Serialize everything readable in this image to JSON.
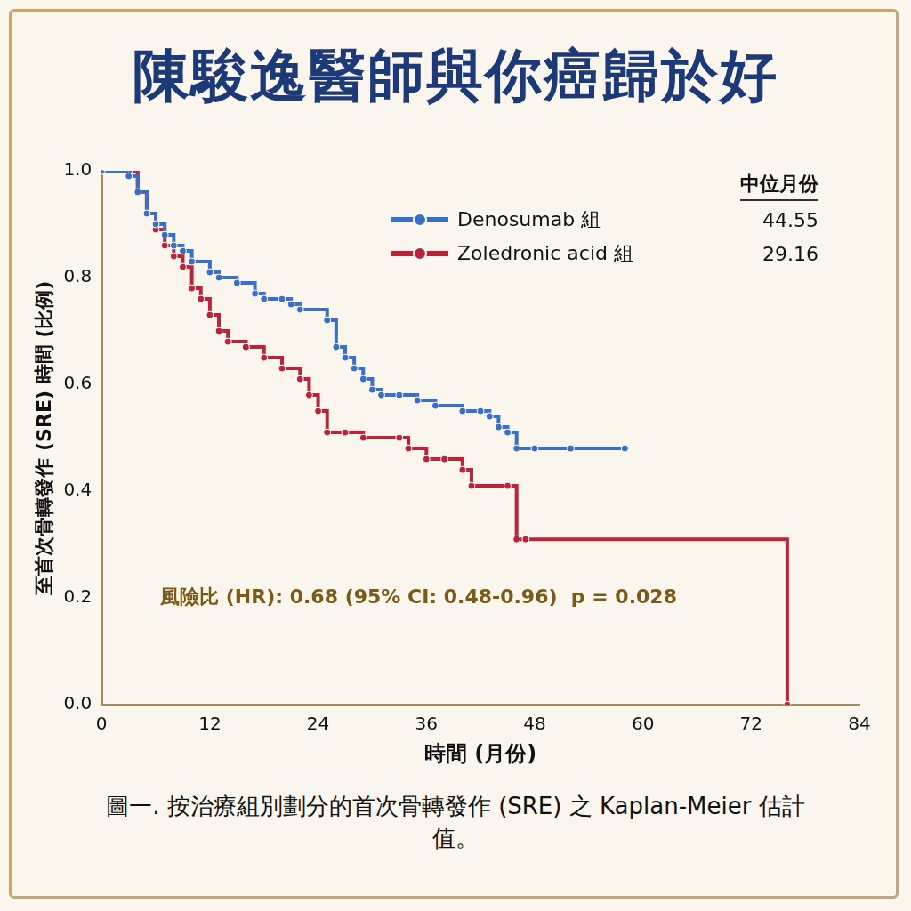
{
  "chart_data": {
    "type": "line",
    "title": "陳駿逸醫師與你癌歸於好",
    "x_label": "時間 (月份)",
    "y_label": "至首次骨轉發作 (SRE) 時間 (比例)",
    "caption": "圖一. 按治療組別劃分的首次骨轉發作 (SRE) 之 Kaplan-Meier 估計值。",
    "annotation": "風險比 (HR): 0.68 (95% CI: 0.48-0.96)  p = 0.028",
    "median_header": "中位月份",
    "xlim": [
      0,
      84
    ],
    "xticks": [
      0,
      12,
      24,
      36,
      48,
      60,
      72,
      84
    ],
    "ylim": [
      0,
      1
    ],
    "yticks": [
      {
        "value": 0,
        "label": "0.0"
      },
      0.2,
      0.4,
      0.6,
      0.8,
      {
        "value": 1,
        "label": "1.0"
      }
    ],
    "grid": false,
    "legend": "upper right",
    "series": [
      {
        "name": "Denosumab 組",
        "color": "#3a6fc4",
        "median": 44.55,
        "marker": "circle",
        "line_style": "steps",
        "x": [
          0,
          3,
          4,
          5,
          6,
          7,
          8,
          9,
          10,
          12,
          13,
          15,
          17,
          18,
          20,
          21,
          22,
          25,
          26,
          27,
          28,
          29,
          30,
          31,
          33,
          35,
          37,
          40,
          42,
          43,
          44,
          45,
          46,
          48,
          52,
          58
        ],
        "values": [
          1.0,
          0.99,
          0.96,
          0.92,
          0.9,
          0.88,
          0.86,
          0.85,
          0.83,
          0.81,
          0.8,
          0.79,
          0.77,
          0.76,
          0.76,
          0.75,
          0.74,
          0.72,
          0.67,
          0.65,
          0.63,
          0.61,
          0.59,
          0.58,
          0.58,
          0.57,
          0.56,
          0.55,
          0.55,
          0.54,
          0.52,
          0.51,
          0.48,
          0.48,
          0.48,
          0.48
        ]
      },
      {
        "name": "Zoledronic acid 組",
        "color": "#b8243a",
        "median": 29.16,
        "marker": "circle",
        "line_style": "steps",
        "x": [
          0,
          3,
          4,
          5,
          6,
          7,
          8,
          9,
          10,
          11,
          12,
          13,
          14,
          16,
          18,
          20,
          22,
          23,
          24,
          25,
          27,
          29,
          33,
          34,
          36,
          38,
          40,
          41,
          45,
          46,
          47,
          76
        ],
        "values": [
          1.0,
          1.0,
          0.96,
          0.92,
          0.89,
          0.86,
          0.84,
          0.82,
          0.78,
          0.76,
          0.73,
          0.7,
          0.68,
          0.67,
          0.65,
          0.63,
          0.61,
          0.58,
          0.55,
          0.51,
          0.51,
          0.5,
          0.5,
          0.48,
          0.46,
          0.46,
          0.44,
          0.41,
          0.41,
          0.31,
          0.31,
          0.0
        ]
      }
    ]
  }
}
